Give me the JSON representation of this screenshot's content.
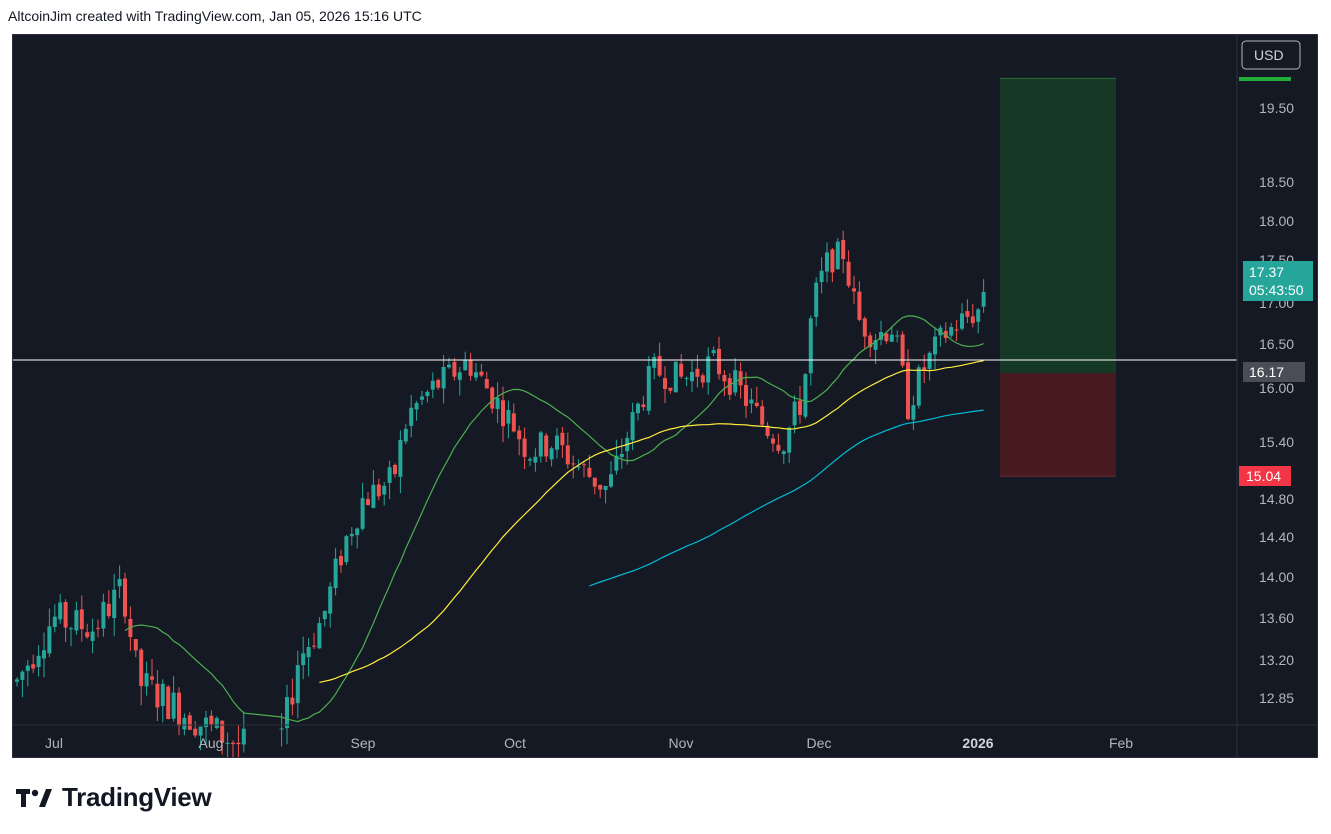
{
  "header": {
    "credit": "AltcoinJim created with TradingView.com, Jan 05, 2026 15:16 UTC"
  },
  "footer": {
    "brand": "TradingView"
  },
  "colors": {
    "background": "#151924",
    "bull": "#26a69a",
    "bear": "#ef5350",
    "ma_fast": "#4caf50",
    "ma_mid": "#ffeb3b",
    "ma_slow": "#00bcd4",
    "target_zone": "#153d25",
    "stop_zone": "#4a1a21"
  },
  "chart_data": {
    "type": "candlestick",
    "currency": "USD",
    "y_ticks": [
      "19.50",
      "18.50",
      "18.00",
      "17.50",
      "17.00",
      "16.50",
      "16.00",
      "15.40",
      "14.80",
      "14.40",
      "14.00",
      "13.60",
      "13.20",
      "12.85"
    ],
    "x_ticks": [
      "Jul",
      "Aug",
      "Sep",
      "Oct",
      "Nov",
      "Dec",
      "2026",
      "Feb"
    ],
    "last_price": "17.37",
    "countdown": "05:43:50",
    "horizontal_line": "16.17",
    "stop_level": "15.04",
    "target_level": "19.90",
    "entry_level": "16.17",
    "candles_ohlc_sample": [
      {
        "date": "Jul",
        "o": 12.9,
        "h": 13.6,
        "l": 12.8,
        "c": 13.5
      },
      {
        "date": "Aug",
        "o": 12.8,
        "h": 12.9,
        "l": 12.6,
        "c": 12.7
      },
      {
        "date": "Sep",
        "o": 13.5,
        "h": 14.2,
        "l": 13.4,
        "c": 14.1
      },
      {
        "date": "Oct",
        "o": 15.9,
        "h": 16.0,
        "l": 15.1,
        "c": 15.3
      },
      {
        "date": "Nov",
        "o": 16.0,
        "h": 16.5,
        "l": 15.8,
        "c": 16.2
      },
      {
        "date": "Dec",
        "o": 17.5,
        "h": 17.8,
        "l": 16.6,
        "c": 16.7
      },
      {
        "date": "2026",
        "o": 17.1,
        "h": 17.4,
        "l": 17.0,
        "c": 17.37
      }
    ]
  }
}
